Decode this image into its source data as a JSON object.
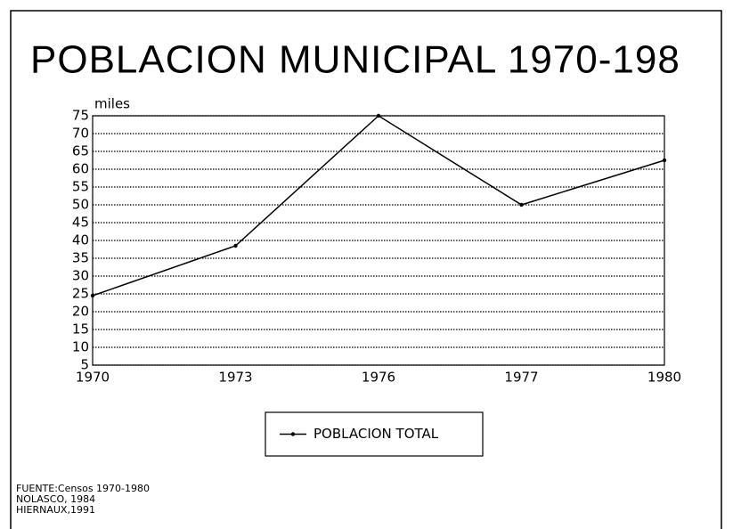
{
  "chart_data": {
    "type": "line",
    "title": "POBLACION MUNICIPAL 1970-198",
    "y_label": "miles",
    "categories": [
      "1970",
      "1973",
      "1976",
      "1977",
      "1980"
    ],
    "series": [
      {
        "name": "POBLACION TOTAL",
        "color": "#000000",
        "values": [
          24.5,
          38.5,
          75,
          50,
          62.5
        ]
      }
    ],
    "ylim": [
      5,
      75
    ],
    "yticks": [
      5,
      10,
      15,
      20,
      25,
      30,
      35,
      40,
      45,
      50,
      55,
      60,
      65,
      70,
      75
    ],
    "grid": true,
    "legend": "bottom",
    "source": [
      "FUENTE:Censos 1970-1980",
      "NOLASCO, 1984",
      "HIERNAUX,1991"
    ]
  }
}
